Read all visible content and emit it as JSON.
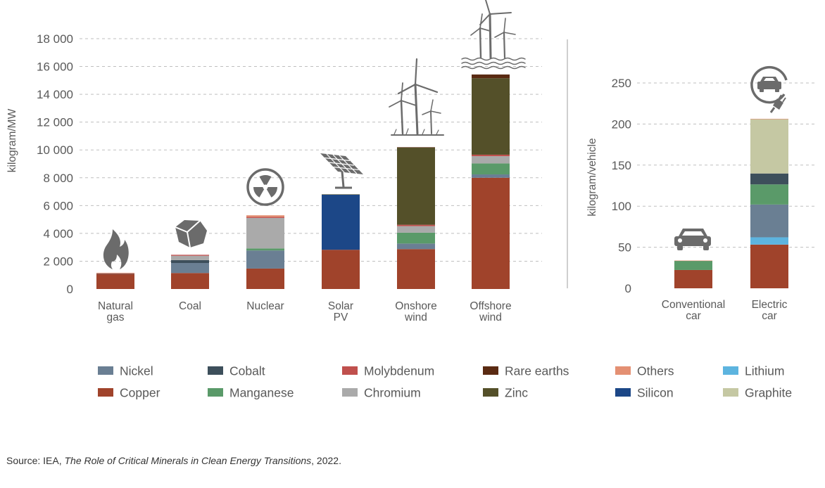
{
  "chart_data": [
    {
      "type": "bar",
      "stacked": true,
      "ylabel": "kilogram/MW",
      "ylim": [
        0,
        18000
      ],
      "yticks": [
        0,
        2000,
        4000,
        6000,
        8000,
        10000,
        12000,
        14000,
        16000,
        18000
      ],
      "ytick_labels": [
        "0",
        "2 000",
        "4 000",
        "6 000",
        "8 000",
        "10 000",
        "12 000",
        "14 000",
        "16 000",
        "18 000"
      ],
      "grid": true,
      "categories": [
        {
          "lines": [
            "Natural",
            "gas"
          ],
          "icon": "flame-icon"
        },
        {
          "lines": [
            "Coal"
          ],
          "icon": "coal-icon"
        },
        {
          "lines": [
            "Nuclear"
          ],
          "icon": "radiation-icon"
        },
        {
          "lines": [
            "Solar",
            "PV"
          ],
          "icon": "solar-panel-icon"
        },
        {
          "lines": [
            "Onshore",
            "wind"
          ],
          "icon": "onshore-wind-icon"
        },
        {
          "lines": [
            "Offshore",
            "wind"
          ],
          "icon": "offshore-wind-icon"
        }
      ],
      "series": [
        {
          "name": "Copper",
          "values": [
            1100,
            1150,
            1470,
            2820,
            2870,
            8000
          ]
        },
        {
          "name": "Nickel",
          "values": [
            16,
            720,
            1300,
            0,
            400,
            240
          ]
        },
        {
          "name": "Cobalt",
          "values": [
            0,
            210,
            0,
            0,
            0,
            0
          ]
        },
        {
          "name": "Manganese",
          "values": [
            0,
            0,
            150,
            0,
            780,
            790
          ]
        },
        {
          "name": "Chromium",
          "values": [
            0,
            310,
            2190,
            0,
            470,
            520
          ]
        },
        {
          "name": "Molybdenum",
          "values": [
            0,
            70,
            70,
            0,
            100,
            110
          ]
        },
        {
          "name": "Silicon",
          "values": [
            0,
            0,
            0,
            3960,
            0,
            0
          ]
        },
        {
          "name": "Zinc",
          "values": [
            0,
            0,
            0,
            30,
            5560,
            5500
          ]
        },
        {
          "name": "Rare earths",
          "values": [
            0,
            0,
            0,
            0,
            15,
            265
          ]
        },
        {
          "name": "Others",
          "values": [
            50,
            0,
            120,
            0,
            0,
            0
          ]
        }
      ]
    },
    {
      "type": "bar",
      "stacked": true,
      "ylabel": "kilogram/vehicle",
      "ylim": [
        0,
        250
      ],
      "yticks": [
        0,
        50,
        100,
        150,
        200,
        250
      ],
      "ytick_labels": [
        "0",
        "50",
        "100",
        "150",
        "200",
        "250"
      ],
      "grid": true,
      "categories": [
        {
          "lines": [
            "Conventional",
            "car"
          ],
          "icon": "car-icon"
        },
        {
          "lines": [
            "Electric",
            "car"
          ],
          "icon": "ev-plug-icon"
        }
      ],
      "series": [
        {
          "name": "Copper",
          "values": [
            22.3,
            53.2
          ]
        },
        {
          "name": "Lithium",
          "values": [
            0,
            8.9
          ]
        },
        {
          "name": "Nickel",
          "values": [
            0,
            39.9
          ]
        },
        {
          "name": "Manganese",
          "values": [
            11.2,
            24.5
          ]
        },
        {
          "name": "Cobalt",
          "values": [
            0,
            13.3
          ]
        },
        {
          "name": "Graphite",
          "values": [
            0,
            66.3
          ]
        },
        {
          "name": "Others",
          "values": [
            0.3,
            0.3
          ]
        }
      ]
    }
  ],
  "colors": {
    "Nickel": "#6a7f93",
    "Cobalt": "#3d4f5b",
    "Molybdenum": "#c0504d",
    "Rare earths": "#5a2a12",
    "Others": "#e49073",
    "Lithium": "#5db4df",
    "Copper": "#a0432b",
    "Manganese": "#5a9a69",
    "Chromium": "#aaaaaa",
    "Zinc": "#545029",
    "Silicon": "#1c4787",
    "Graphite": "#c5c8a3",
    "text": "#595959",
    "grid": "#bfbfbf",
    "icon": "#6b6b6b"
  },
  "legend": {
    "placement": "bottom",
    "rows": [
      [
        "Nickel",
        "Cobalt",
        "Molybdenum",
        "Rare earths",
        "Others",
        "Lithium"
      ],
      [
        "Copper",
        "Manganese",
        "Chromium",
        "Zinc",
        "Silicon",
        "Graphite"
      ]
    ]
  },
  "source": {
    "prefix": "Source: IEA, ",
    "title": "The Role of Critical Minerals in Clean Energy Transitions",
    "suffix": ", 2022."
  }
}
